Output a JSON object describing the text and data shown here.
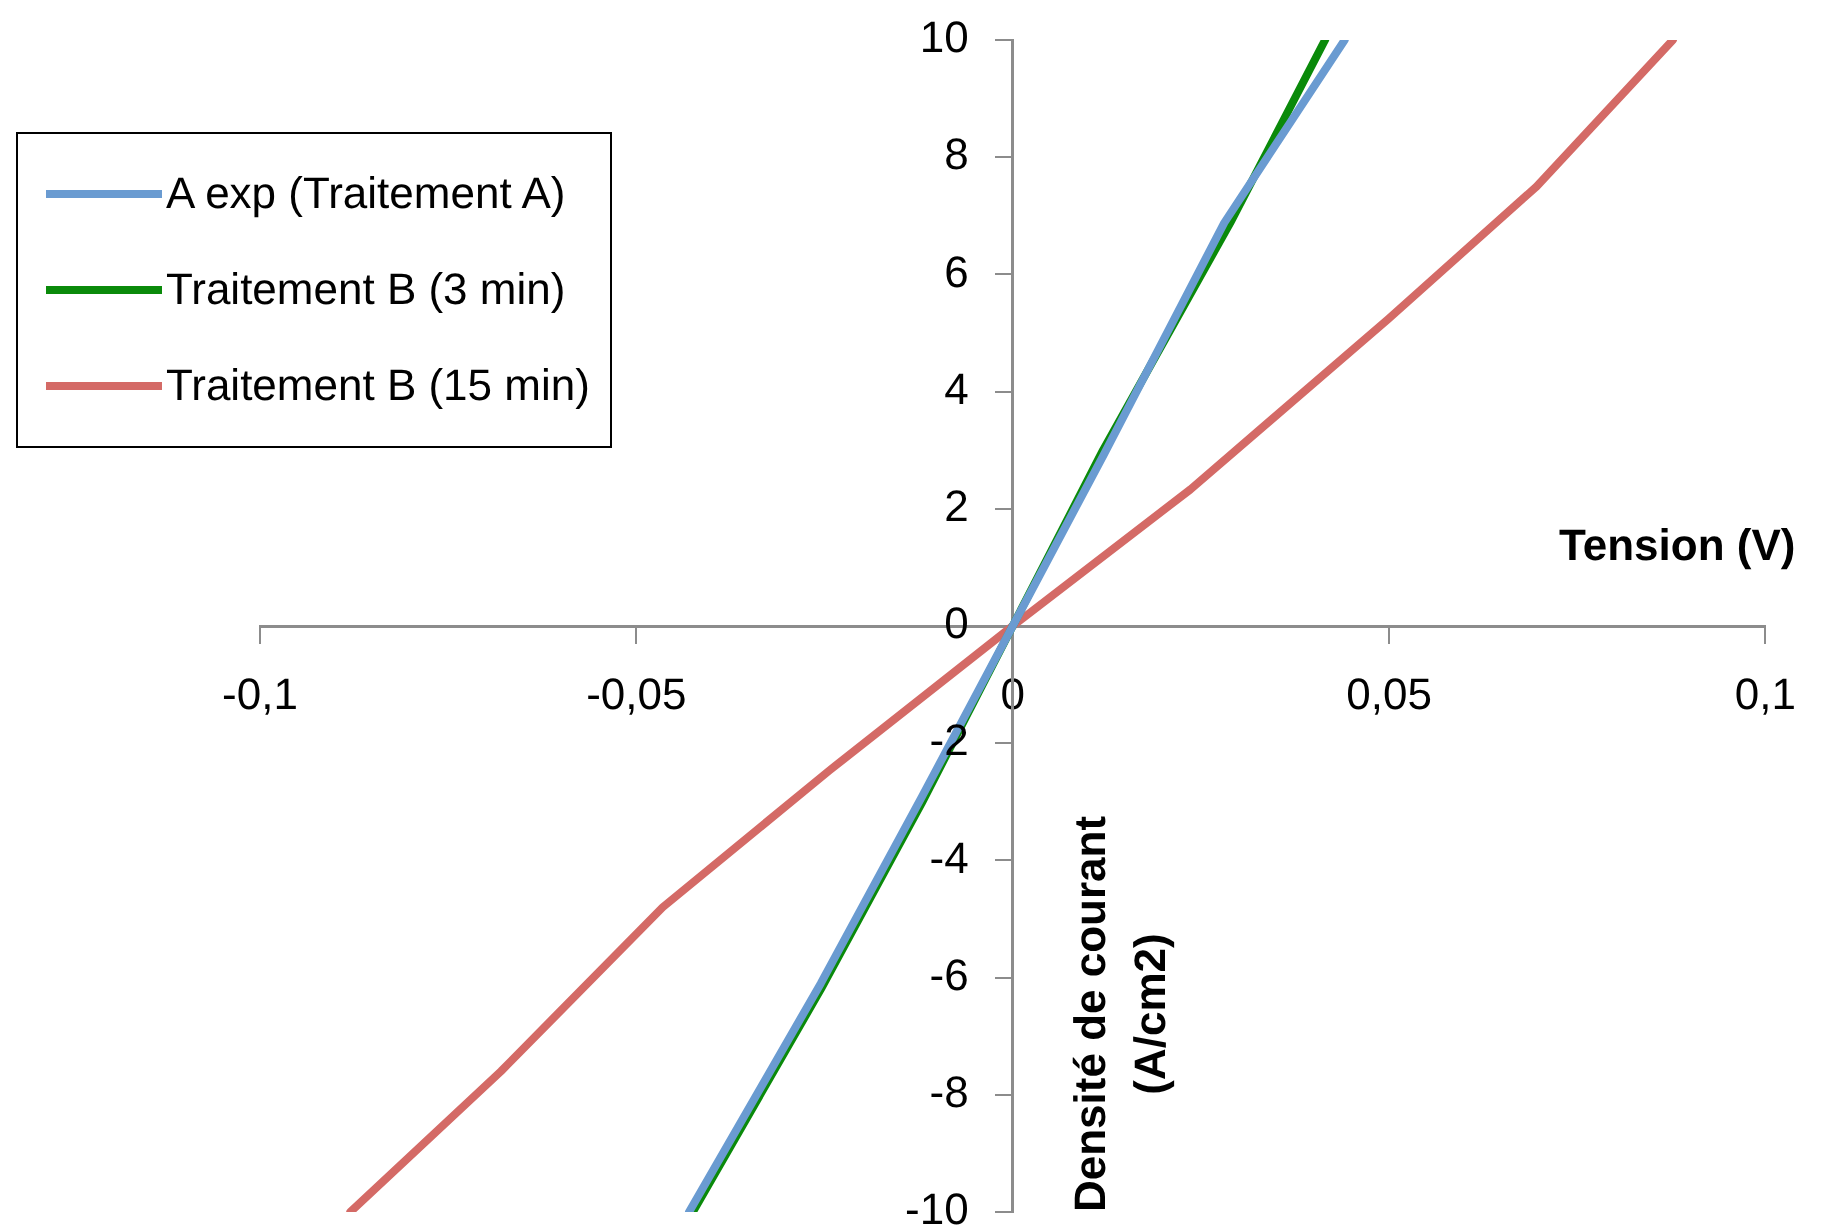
{
  "chart_data": {
    "type": "line",
    "xlabel": "Tension (V)",
    "ylabel": "Densité de courant (A/cm2)",
    "xlim": [
      -0.1,
      0.1
    ],
    "ylim": [
      -10,
      10
    ],
    "xticks": [
      {
        "value": -0.1,
        "label": "-0,1"
      },
      {
        "value": -0.05,
        "label": "-0,05"
      },
      0,
      {
        "value": 0.05,
        "label": "0,05"
      },
      {
        "value": 0.1,
        "label": "0,1"
      }
    ],
    "yticks": [
      -10,
      -8,
      -6,
      -4,
      -2,
      0,
      2,
      4,
      6,
      8,
      10
    ],
    "grid": false,
    "legend": "top left",
    "marker": "none",
    "line_style": "solid",
    "series": [
      {
        "name": "A exp (Traitement A)",
        "color": "#6a9bd1",
        "x": [
          -0.043,
          -0.0255,
          -0.012,
          0,
          0.012,
          0.0281,
          0.0441
        ],
        "values": [
          -10,
          -6.1,
          -2.9,
          0,
          2.9,
          6.88,
          10
        ]
      },
      {
        "name": "Traitement B (3 min)",
        "color": "#0a8a0a",
        "x": [
          -0.0425,
          -0.0255,
          -0.012,
          0,
          0.012,
          0.0289,
          0.0415
        ],
        "values": [
          -10,
          -6.2,
          -3.0,
          0,
          3.0,
          6.88,
          10
        ]
      },
      {
        "name": "Traitement B (15 min)",
        "color": "#d46a66",
        "x": [
          -0.088,
          -0.068,
          -0.0465,
          -0.0244,
          0,
          0.0236,
          0.0499,
          0.0696,
          0.0877
        ],
        "values": [
          -10,
          -7.6,
          -4.8,
          -2.47,
          0,
          2.33,
          5.24,
          7.5,
          10
        ]
      }
    ]
  }
}
